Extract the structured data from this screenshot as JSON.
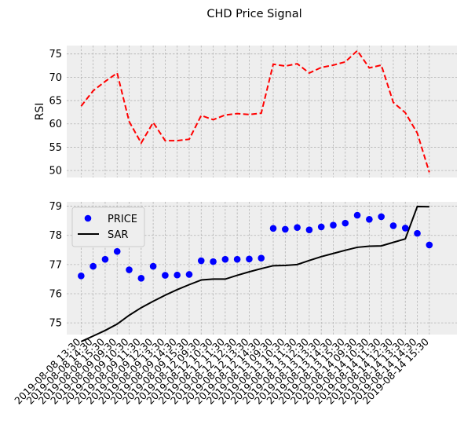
{
  "chart_data": [
    {
      "type": "line",
      "title": "CHD Price Signal",
      "ylabel": "RSI",
      "ylim": [
        48.5,
        76.8
      ],
      "yticks": [
        50,
        55,
        60,
        65,
        70,
        75
      ],
      "grid": true,
      "series": [
        {
          "color": "#ff0000",
          "style": "dashed",
          "values": [
            63.8,
            67.1,
            69.1,
            70.9,
            60.5,
            55.9,
            60.3,
            56.4,
            56.4,
            56.7,
            61.8,
            60.9,
            61.9,
            62.2,
            62.0,
            62.3,
            72.8,
            72.4,
            72.9,
            70.9,
            72.1,
            72.6,
            73.3,
            75.7,
            72.0,
            72.6,
            64.6,
            62.4,
            58.0,
            49.6
          ]
        }
      ]
    },
    {
      "type": "line",
      "ylim": [
        74.6,
        79.15
      ],
      "yticks": [
        75,
        76,
        77,
        78,
        79
      ],
      "legend": "top-left",
      "grid": true,
      "categories": [
        "2019-08-08 13:30",
        "2019-08-08 14:30",
        "2019-08-08 15:30",
        "2019-08-09 09:30",
        "2019-08-09 10:30",
        "2019-08-09 11:30",
        "2019-08-09 12:30",
        "2019-08-09 13:30",
        "2019-08-09 14:30",
        "2019-08-09 15:30",
        "2019-08-12 09:30",
        "2019-08-12 10:30",
        "2019-08-12 11:30",
        "2019-08-12 12:30",
        "2019-08-12 13:30",
        "2019-08-12 14:30",
        "2019-08-13 09:30",
        "2019-08-13 10:30",
        "2019-08-13 11:30",
        "2019-08-13 12:30",
        "2019-08-13 13:30",
        "2019-08-13 14:30",
        "2019-08-13 15:30",
        "2019-08-14 09:30",
        "2019-08-14 10:30",
        "2019-08-14 11:30",
        "2019-08-14 12:30",
        "2019-08-14 13:30",
        "2019-08-14 14:30",
        "2019-08-14 15:30"
      ],
      "series": [
        {
          "name": "PRICE",
          "kind": "scatter",
          "color": "#0000ff",
          "values": [
            76.61,
            76.94,
            77.18,
            77.45,
            76.82,
            76.53,
            76.94,
            76.63,
            76.64,
            76.66,
            77.13,
            77.1,
            77.18,
            77.18,
            77.19,
            77.22,
            78.24,
            78.21,
            78.27,
            78.19,
            78.29,
            78.35,
            78.42,
            78.69,
            78.55,
            78.64,
            78.33,
            78.25,
            78.07,
            77.67
          ]
        },
        {
          "name": "SAR",
          "kind": "line",
          "color": "#000000",
          "values": [
            74.36,
            74.55,
            74.74,
            74.96,
            75.26,
            75.52,
            75.74,
            75.95,
            76.14,
            76.31,
            76.47,
            76.5,
            76.5,
            76.63,
            76.75,
            76.86,
            76.96,
            76.97,
            77.0,
            77.14,
            77.27,
            77.38,
            77.49,
            77.59,
            77.63,
            77.64,
            77.76,
            77.88,
            78.99,
            78.98
          ]
        }
      ]
    }
  ]
}
